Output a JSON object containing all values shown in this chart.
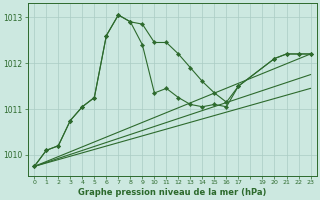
{
  "bg_color": "#cce8e0",
  "grid_color": "#aaccc4",
  "line_color": "#2d6a2d",
  "ylim": [
    1009.55,
    1013.3
  ],
  "xlim": [
    -0.5,
    23.5
  ],
  "yticks": [
    1010,
    1011,
    1012,
    1013
  ],
  "xtick_labels": [
    "0",
    "1",
    "2",
    "3",
    "4",
    "5",
    "6",
    "7",
    "8",
    "9",
    "10",
    "11",
    "12",
    "13",
    "14",
    "15",
    "16",
    "17",
    "",
    "19",
    "20",
    "21",
    "22",
    "23"
  ],
  "xtick_positions": [
    0,
    1,
    2,
    3,
    4,
    5,
    6,
    7,
    8,
    9,
    10,
    11,
    12,
    13,
    14,
    15,
    16,
    17,
    18,
    19,
    20,
    21,
    22,
    23
  ],
  "xlabel": "Graphe pression niveau de la mer (hPa)",
  "line1_x": [
    0,
    1,
    2,
    3,
    4,
    5,
    6,
    7,
    8,
    9,
    10,
    11,
    12,
    13,
    14,
    15,
    16,
    17,
    20,
    21,
    22,
    23
  ],
  "line1_y": [
    1009.75,
    1010.1,
    1010.2,
    1010.75,
    1011.05,
    1011.25,
    1012.6,
    1013.05,
    1012.9,
    1012.85,
    1012.45,
    1012.45,
    1012.2,
    1011.9,
    1011.6,
    1011.35,
    1011.15,
    1011.5,
    1012.1,
    1012.2,
    1012.2,
    1012.2
  ],
  "line2_x": [
    0,
    1,
    2,
    3,
    4,
    5,
    6,
    7,
    8,
    9,
    10,
    11,
    12,
    13,
    14,
    15,
    16,
    17,
    20,
    21,
    22,
    23
  ],
  "line2_y": [
    1009.75,
    1010.1,
    1010.2,
    1010.75,
    1011.05,
    1011.25,
    1012.6,
    1013.05,
    1012.9,
    1012.4,
    1011.35,
    1011.45,
    1011.25,
    1011.1,
    1011.05,
    1011.1,
    1011.05,
    1011.5,
    1012.1,
    1012.2,
    1012.2,
    1012.2
  ],
  "line3_x": [
    0,
    23
  ],
  "line3_y": [
    1009.75,
    1012.2
  ],
  "line4_x": [
    0,
    23
  ],
  "line4_y": [
    1009.75,
    1011.75
  ],
  "line5_x": [
    0,
    23
  ],
  "line5_y": [
    1009.75,
    1011.45
  ]
}
